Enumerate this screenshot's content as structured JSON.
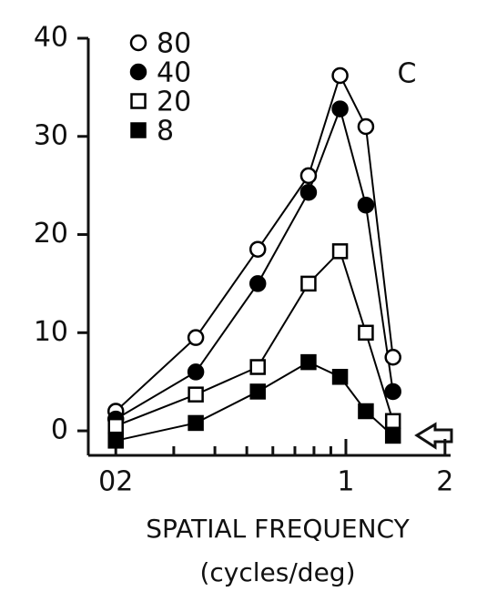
{
  "chart_data": {
    "type": "line",
    "annotations": [
      "C"
    ],
    "xlabel": "SPATIAL FREQUENCY",
    "xlabel2": "(cycles/deg)",
    "x": [
      0.2,
      0.35,
      0.54,
      0.77,
      0.96,
      1.15,
      1.39
    ],
    "series": [
      {
        "name": "80",
        "color": "#000000",
        "marker": "circle",
        "filled": false,
        "values": [
          2,
          9.5,
          18.5,
          26,
          36.2,
          31,
          7.5
        ]
      },
      {
        "name": "40",
        "color": "#000000",
        "marker": "circle",
        "filled": true,
        "values": [
          1.2,
          6,
          15,
          24.3,
          32.8,
          23,
          4
        ]
      },
      {
        "name": "20",
        "color": "#000000",
        "marker": "square",
        "filled": false,
        "values": [
          0.5,
          3.7,
          6.5,
          15,
          18.3,
          10,
          1
        ]
      },
      {
        "name": "8",
        "color": "#000000",
        "marker": "square",
        "filled": true,
        "values": [
          -1,
          0.8,
          4,
          7,
          5.5,
          2,
          -0.5
        ]
      }
    ],
    "xscale": "log",
    "xlim": [
      0.165,
      2.08
    ],
    "xticks": [
      {
        "value": 0.2,
        "label": "02"
      },
      1,
      2
    ],
    "xminorticks": [
      0.3,
      0.4,
      0.5,
      0.6,
      0.7,
      0.8,
      0.9
    ],
    "ylim": [
      -2.5,
      40
    ],
    "yticks": [
      0,
      10,
      20,
      30,
      40
    ],
    "legend": "upper left",
    "grid": false
  }
}
